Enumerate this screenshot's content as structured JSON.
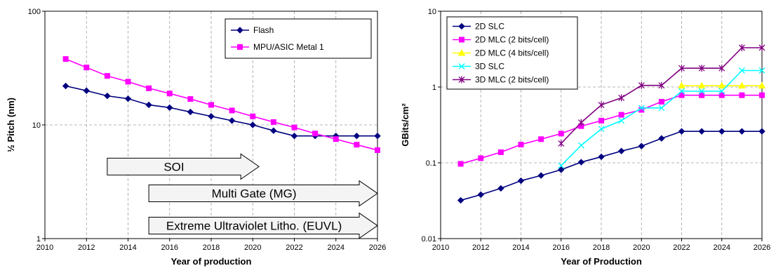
{
  "chart_data": [
    {
      "type": "line",
      "yscale": "log",
      "xlabel": "Year of production",
      "ylabel": "½ Pitch (nm)",
      "xlim": [
        2010,
        2026
      ],
      "ylim": [
        1,
        100
      ],
      "xticks": [
        "2010",
        "2012",
        "2014",
        "2016",
        "2018",
        "2020",
        "2022",
        "2024",
        "2026"
      ],
      "yticks": [
        "1",
        "10",
        "100"
      ],
      "grid": true,
      "legend_position": "top-right",
      "x": [
        2011,
        2012,
        2013,
        2014,
        2015,
        2016,
        2017,
        2018,
        2019,
        2020,
        2021,
        2022,
        2023,
        2024,
        2025,
        2026
      ],
      "series": [
        {
          "name": "Flash",
          "color": "#000080",
          "marker": "diamond",
          "values": [
            22,
            20,
            18,
            17,
            15,
            14.2,
            13,
            11.9,
            10.9,
            10,
            8.9,
            8,
            8,
            8,
            8,
            8
          ]
        },
        {
          "name": "MPU/ASIC Metal 1",
          "color": "#ff00ff",
          "marker": "square",
          "values": [
            38,
            32,
            27,
            24,
            21,
            18.9,
            16.9,
            15,
            13.4,
            11.9,
            10.6,
            9.5,
            8.4,
            7.5,
            6.7,
            6
          ]
        }
      ],
      "annotations": [
        {
          "text": "SOI",
          "x_start": 2013,
          "x_end": 2020.3,
          "y_level": 4.3
        },
        {
          "text": "Multi Gate (MG)",
          "x_start": 2015,
          "x_end": 2026,
          "y_level": 2.5
        },
        {
          "text": "Extreme Ultraviolet Litho. (EUVL)",
          "x_start": 2015,
          "x_end": 2026,
          "y_level": 1.3
        }
      ]
    },
    {
      "type": "line",
      "yscale": "log",
      "xlabel": "Year of Production",
      "ylabel": "GBits/cm²",
      "xlim": [
        2010,
        2026
      ],
      "ylim": [
        0.01,
        10
      ],
      "xticks": [
        "2010",
        "2012",
        "2014",
        "2016",
        "2018",
        "2020",
        "2022",
        "2024",
        "2026"
      ],
      "yticks": [
        "0.01",
        "0.1",
        "1",
        "10"
      ],
      "grid": true,
      "legend_position": "top-left",
      "series": [
        {
          "name": "2D SLC",
          "color": "#000080",
          "marker": "diamond",
          "x": [
            2011,
            2012,
            2013,
            2014,
            2015,
            2016,
            2017,
            2018,
            2019,
            2020,
            2021,
            2022,
            2023,
            2024,
            2025,
            2026
          ],
          "values": [
            0.032,
            0.038,
            0.046,
            0.058,
            0.068,
            0.081,
            0.102,
            0.12,
            0.143,
            0.166,
            0.21,
            0.26,
            0.26,
            0.26,
            0.26,
            0.26
          ]
        },
        {
          "name": "2D MLC (2 bits/cell)",
          "color": "#ff00ff",
          "marker": "square",
          "x": [
            2011,
            2012,
            2013,
            2014,
            2015,
            2016,
            2017,
            2018,
            2019,
            2020,
            2021,
            2022,
            2023,
            2024,
            2025,
            2026
          ],
          "values": [
            0.097,
            0.115,
            0.138,
            0.174,
            0.205,
            0.243,
            0.305,
            0.36,
            0.43,
            0.5,
            0.64,
            0.78,
            0.78,
            0.78,
            0.78,
            0.78
          ]
        },
        {
          "name": "2D MLC (4 bits/cell)",
          "color": "#ffff00",
          "marker": "triangle",
          "x": [
            2022,
            2023,
            2024,
            2025,
            2026
          ],
          "values": [
            1.04,
            1.04,
            1.04,
            1.04,
            1.04
          ]
        },
        {
          "name": "3D SLC",
          "color": "#00ffff",
          "marker": "x",
          "x": [
            2016,
            2017,
            2018,
            2019,
            2020,
            2021,
            2022,
            2023,
            2024,
            2025,
            2026
          ],
          "values": [
            0.092,
            0.17,
            0.28,
            0.36,
            0.53,
            0.53,
            0.88,
            0.88,
            0.88,
            1.65,
            1.65
          ]
        },
        {
          "name": "3D MLC (2 bits/cell)",
          "color": "#800080",
          "marker": "star",
          "x": [
            2016,
            2017,
            2018,
            2019,
            2020,
            2021,
            2022,
            2023,
            2024,
            2025,
            2026
          ],
          "values": [
            0.18,
            0.34,
            0.58,
            0.72,
            1.05,
            1.05,
            1.77,
            1.77,
            1.77,
            3.3,
            3.3
          ]
        }
      ]
    }
  ]
}
